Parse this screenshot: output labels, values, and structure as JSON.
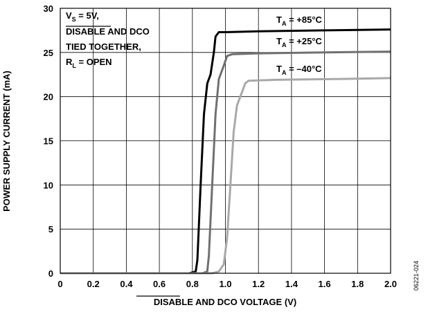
{
  "chart_data": {
    "type": "line",
    "title": "",
    "xlabel": "DISABLE AND DCO VOLTAGE (V)",
    "xlabel_overlined_word": "DISABLE",
    "xlabel_rest": " AND DCO VOLTAGE (V)",
    "ylabel": "POWER SUPPLY CURRENT (mA)",
    "xlim": [
      0,
      2.0
    ],
    "ylim": [
      0,
      30
    ],
    "x_ticks": [
      0,
      0.2,
      0.4,
      0.6,
      0.8,
      1.0,
      1.2,
      1.4,
      1.6,
      1.8,
      2.0
    ],
    "x_tick_labels": [
      "0",
      "0.2",
      "0.4",
      "0.6",
      "0.8",
      "1.0",
      "1.2",
      "1.4",
      "1.6",
      "1.8",
      "2.0"
    ],
    "y_ticks": [
      0,
      5,
      10,
      15,
      20,
      25,
      30
    ],
    "y_tick_labels": [
      "0",
      "5",
      "10",
      "15",
      "20",
      "25",
      "30"
    ],
    "grid": true,
    "legend": "inline labels",
    "conditions": {
      "line1": "VS = 5V,",
      "line2": "DISABLE AND DCO",
      "line3": "TIED TOGETHER,",
      "line4": "RL = OPEN"
    },
    "series": [
      {
        "name": "TA = +85°C",
        "color": "#000000",
        "points": [
          [
            0,
            0
          ],
          [
            0.78,
            0
          ],
          [
            0.82,
            0.2
          ],
          [
            0.83,
            1.5
          ],
          [
            0.85,
            10
          ],
          [
            0.87,
            18
          ],
          [
            0.89,
            21.5
          ],
          [
            0.91,
            22.5
          ],
          [
            0.93,
            25
          ],
          [
            0.94,
            26.8
          ],
          [
            0.96,
            27.3
          ],
          [
            1.0,
            27.3
          ],
          [
            1.2,
            27.4
          ],
          [
            1.6,
            27.5
          ],
          [
            2.0,
            27.6
          ]
        ]
      },
      {
        "name": "TA = +25°C",
        "color": "#707070",
        "points": [
          [
            0,
            0
          ],
          [
            0.86,
            0
          ],
          [
            0.89,
            0.2
          ],
          [
            0.9,
            2
          ],
          [
            0.92,
            10
          ],
          [
            0.94,
            18
          ],
          [
            0.96,
            22
          ],
          [
            0.99,
            23.5
          ],
          [
            1.01,
            24.6
          ],
          [
            1.04,
            24.8
          ],
          [
            1.2,
            24.9
          ],
          [
            1.6,
            25.0
          ],
          [
            2.0,
            25.1
          ]
        ]
      },
      {
        "name": "TA = −40°C",
        "color": "#a8a8a8",
        "points": [
          [
            0,
            0
          ],
          [
            0.92,
            0
          ],
          [
            0.96,
            0.2
          ],
          [
            0.99,
            1
          ],
          [
            1.01,
            4
          ],
          [
            1.03,
            10
          ],
          [
            1.05,
            16
          ],
          [
            1.07,
            19
          ],
          [
            1.1,
            20.5
          ],
          [
            1.12,
            21.5
          ],
          [
            1.14,
            21.8
          ],
          [
            1.3,
            21.9
          ],
          [
            1.7,
            22.0
          ],
          [
            2.0,
            22.1
          ]
        ]
      }
    ],
    "series_labels": {
      "s85": "+85°C",
      "s25": "+25°C",
      "s40": "–40°C",
      "prefix": "T",
      "sub": "A",
      "eq": " = "
    },
    "figure_code": "06221-024"
  }
}
